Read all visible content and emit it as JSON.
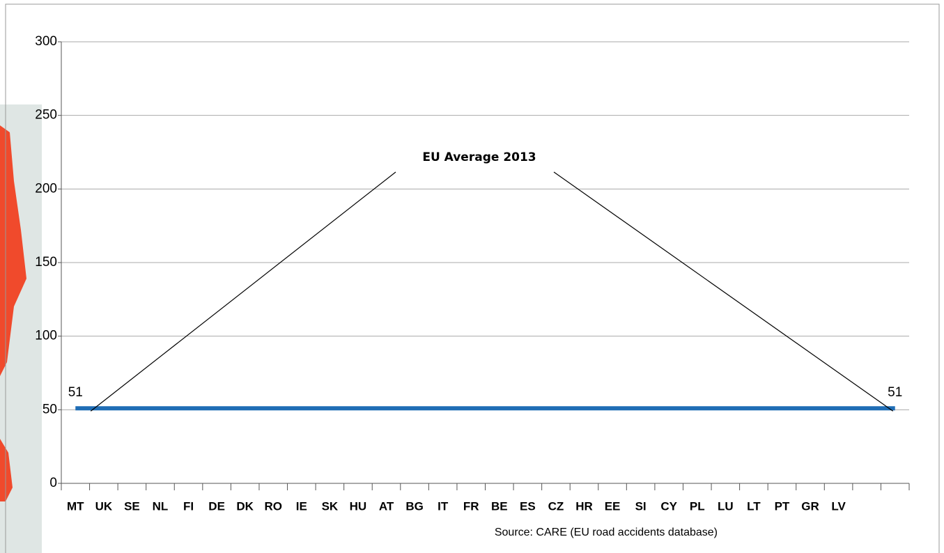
{
  "chart_data": {
    "type": "line",
    "annotation": "EU Average 2013",
    "source": "Source: CARE (EU road accidents database)",
    "categories": [
      "MT",
      "UK",
      "SE",
      "NL",
      "FI",
      "DE",
      "DK",
      "RO",
      "IE",
      "SK",
      "HU",
      "AT",
      "BG",
      "IT",
      "FR",
      "BE",
      "ES",
      "CZ",
      "HR",
      "EE",
      "SI",
      "CY",
      "PL",
      "LU",
      "LT",
      "PT",
      "GR",
      "LV",
      null,
      null
    ],
    "series": [
      {
        "name": "EU Average 2013",
        "color": "#1f6db5",
        "values": [
          51,
          51,
          51,
          51,
          51,
          51,
          51,
          51,
          51,
          51,
          51,
          51,
          51,
          51,
          51,
          51,
          51,
          51,
          51,
          51,
          51,
          51,
          51,
          51,
          51,
          51,
          51,
          51,
          51,
          51
        ],
        "value_labels": [
          "51",
          null,
          null,
          null,
          null,
          null,
          null,
          null,
          null,
          null,
          null,
          null,
          null,
          null,
          null,
          null,
          null,
          null,
          null,
          null,
          null,
          null,
          null,
          null,
          null,
          null,
          null,
          null,
          null,
          "51"
        ]
      }
    ],
    "ylim": [
      0,
      300
    ],
    "yticks": [
      0,
      50,
      100,
      150,
      200,
      250,
      300
    ],
    "grid": true
  }
}
